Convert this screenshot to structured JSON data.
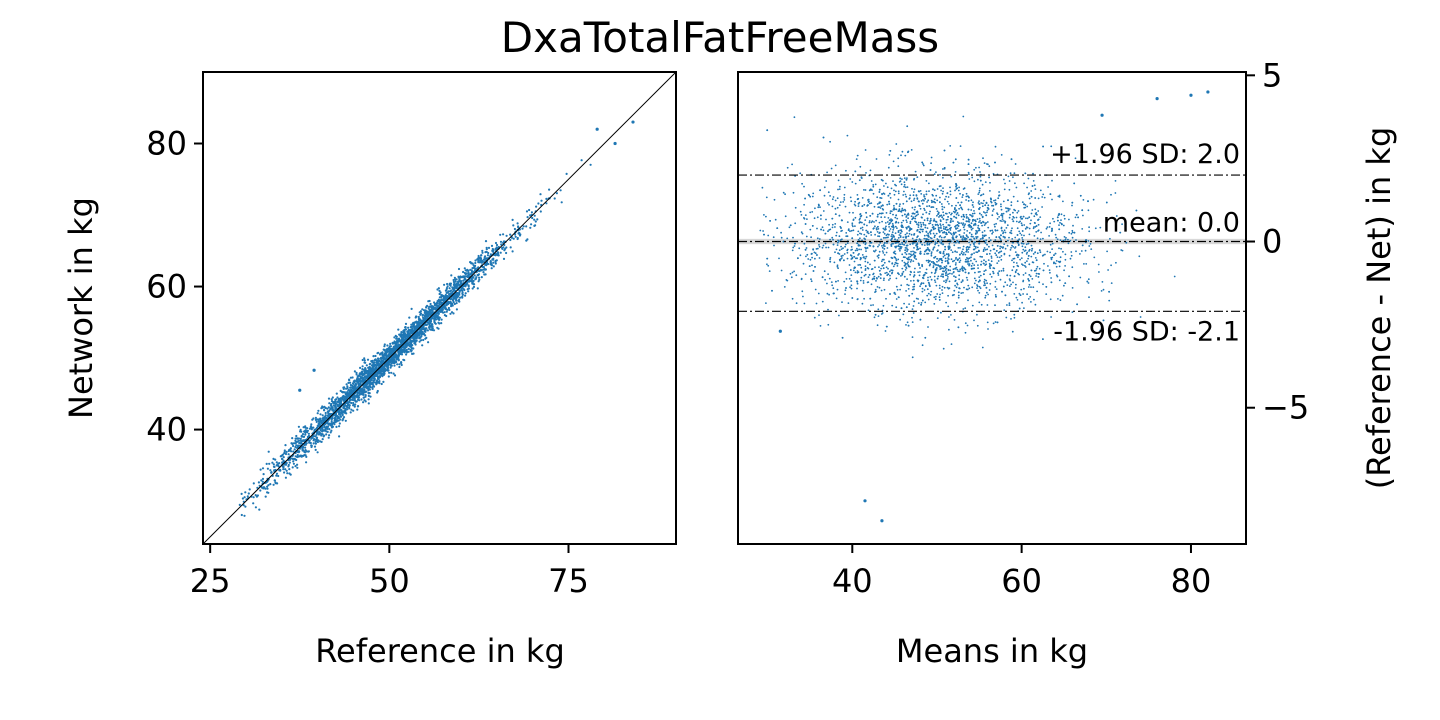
{
  "figure": {
    "title": "DxaTotalFatFreeMass"
  },
  "colors": {
    "points": "#1f77b4",
    "identity_line": "#000000",
    "mean_band": "#c8c8c8"
  },
  "chart_data": [
    {
      "type": "scatter",
      "name": "reference-vs-network",
      "xlabel": "Reference in kg",
      "ylabel": "Network in kg",
      "xlim": [
        24,
        90
      ],
      "ylim": [
        24,
        90
      ],
      "xticks": [
        25,
        50,
        75
      ],
      "yticks": [
        40,
        60,
        80
      ],
      "identity_line": true,
      "point_color": "#1f77b4",
      "points_note": "dense cloud along identity line, ~5000 points",
      "cloud": {
        "x_range": [
          29,
          84
        ],
        "trend": "y = x",
        "spread_sd": 1.05
      },
      "outliers": [
        [
          37.5,
          45.5
        ],
        [
          39.5,
          48.3
        ],
        [
          79,
          82
        ],
        [
          81.5,
          80
        ],
        [
          84,
          83
        ]
      ]
    },
    {
      "type": "scatter",
      "name": "bland-altman",
      "xlabel": "Means in kg",
      "ylabel": "(Reference - Net) in kg",
      "y_axis_position": "right",
      "xlim": [
        26.5,
        86.5
      ],
      "ylim": [
        -9.1,
        5.1
      ],
      "xticks": [
        40,
        60,
        80
      ],
      "yticks": [
        5,
        0,
        -5
      ],
      "ytick_labels": [
        "5",
        "0",
        "−5"
      ],
      "point_color": "#1f77b4",
      "mean": 0.0,
      "upper_loa": 2.0,
      "lower_loa": -2.1,
      "annotations": {
        "upper": "+1.96 SD: 2.0",
        "mean": "mean: 0.0",
        "lower": "-1.96 SD: -2.1"
      },
      "cloud": {
        "x_range": [
          30,
          82
        ],
        "center_y": 0.0,
        "spread_sd": 1.05
      },
      "outliers": [
        [
          41.5,
          -7.8
        ],
        [
          43.5,
          -8.4
        ],
        [
          76,
          4.3
        ],
        [
          80,
          4.4
        ],
        [
          82,
          4.5
        ],
        [
          69.5,
          3.8
        ],
        [
          31.5,
          -2.7
        ]
      ]
    }
  ]
}
